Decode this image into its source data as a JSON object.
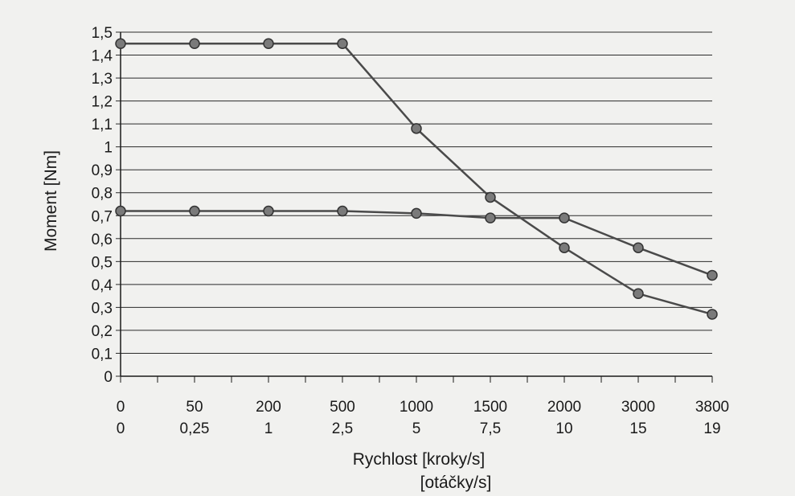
{
  "chart_data": {
    "type": "line",
    "ylabel": "Moment [Nm]",
    "xlabel_line1": "Rychlost [kroky/s]",
    "xlabel_line2": "[otáčky/s]",
    "ylim": [
      0,
      1.5
    ],
    "y_ticks": [
      "0",
      "0,1",
      "0,2",
      "0,3",
      "0,4",
      "0,5",
      "0,6",
      "0,7",
      "0,8",
      "0,9",
      "1",
      "1,1",
      "1,2",
      "1,3",
      "1,4",
      "1,5"
    ],
    "categories": [
      "0",
      "50",
      "200",
      "500",
      "1000",
      "1500",
      "2000",
      "3000",
      "3800"
    ],
    "categories_secondary": [
      "0",
      "0,25",
      "1",
      "2,5",
      "5",
      "7,5",
      "10",
      "15",
      "19"
    ],
    "grid": "horizontal",
    "series": [
      {
        "values": [
          1.45,
          1.45,
          1.45,
          1.45,
          1.08,
          0.78,
          0.56,
          0.36,
          0.27
        ]
      },
      {
        "values": [
          0.72,
          0.72,
          0.72,
          0.72,
          0.71,
          0.69,
          0.69,
          0.56,
          0.44
        ]
      }
    ],
    "line_color": "#4a4a4a",
    "marker_color": "#7a7a7a"
  }
}
